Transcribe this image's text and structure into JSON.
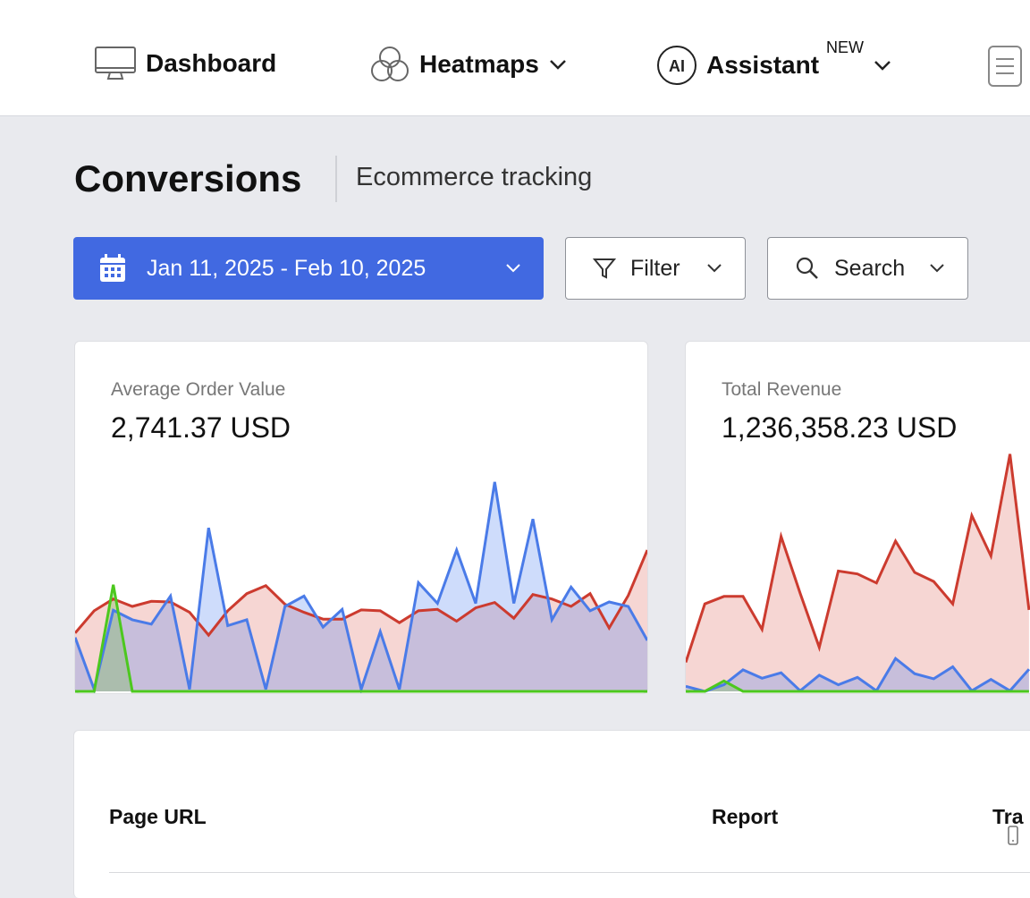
{
  "nav": {
    "dashboard": "Dashboard",
    "heatmaps": "Heatmaps",
    "assistant": "Assistant",
    "assistant_badge": "NEW",
    "ai_icon_text": "AI"
  },
  "page": {
    "title": "Conversions",
    "subtitle": "Ecommerce tracking"
  },
  "toolbar": {
    "date_range": "Jan 11, 2025 - Feb 10, 2025",
    "filter": "Filter",
    "search": "Search"
  },
  "colors": {
    "accent": "#4169e1",
    "red": "#cc3b2f",
    "blue": "#4a7be8",
    "green": "#4cc81e"
  },
  "cards": [
    {
      "label": "Average Order Value",
      "value": "2,741.37 USD"
    },
    {
      "label": "Total Revenue",
      "value": "1,236,358.23 USD"
    }
  ],
  "chart_data": [
    {
      "type": "area",
      "title": "Average Order Value",
      "ylim": [
        0,
        770
      ],
      "series": [
        {
          "name": "red",
          "color": "#cc3b2f",
          "values": [
            197,
            272,
            312,
            287,
            304,
            302,
            267,
            190,
            272,
            330,
            357,
            294,
            267,
            244,
            244,
            275,
            272,
            232,
            272,
            277,
            237,
            282,
            300,
            247,
            327,
            312,
            287,
            330,
            214,
            324,
            477
          ]
        },
        {
          "name": "blue",
          "color": "#4a7be8",
          "values": [
            182,
            7,
            274,
            242,
            227,
            322,
            7,
            552,
            222,
            242,
            7,
            287,
            322,
            217,
            277,
            7,
            202,
            7,
            367,
            297,
            477,
            297,
            707,
            297,
            582,
            242,
            352,
            272,
            302,
            287,
            172
          ]
        },
        {
          "name": "green",
          "color": "#4cc81e",
          "values": [
            0,
            0,
            360,
            0,
            0,
            0,
            0,
            0,
            0,
            0,
            0,
            0,
            0,
            0,
            0,
            0,
            0,
            0,
            0,
            0,
            0,
            0,
            0,
            0,
            0,
            0,
            0,
            0,
            0,
            0,
            0
          ]
        }
      ]
    },
    {
      "type": "area",
      "title": "Total Revenue",
      "ylim": [
        0,
        830
      ],
      "series": [
        {
          "name": "red",
          "color": "#cc3b2f",
          "values": [
            97,
            292,
            317,
            317,
            207,
            517,
            327,
            147,
            402,
            392,
            362,
            502,
            397,
            367,
            292,
            587,
            452,
            792,
            272
          ]
        },
        {
          "name": "blue",
          "color": "#4a7be8",
          "values": [
            17,
            0,
            22,
            72,
            44,
            62,
            2,
            54,
            22,
            47,
            2,
            110,
            59,
            42,
            82,
            2,
            40,
            2,
            74
          ]
        },
        {
          "name": "green",
          "color": "#4cc81e",
          "values": [
            0,
            0,
            35,
            0,
            0,
            0,
            0,
            0,
            0,
            0,
            0,
            0,
            0,
            0,
            0,
            0,
            0,
            0,
            0
          ]
        }
      ]
    }
  ],
  "table": {
    "headers": [
      "Page URL",
      "Report",
      "Tra"
    ]
  }
}
